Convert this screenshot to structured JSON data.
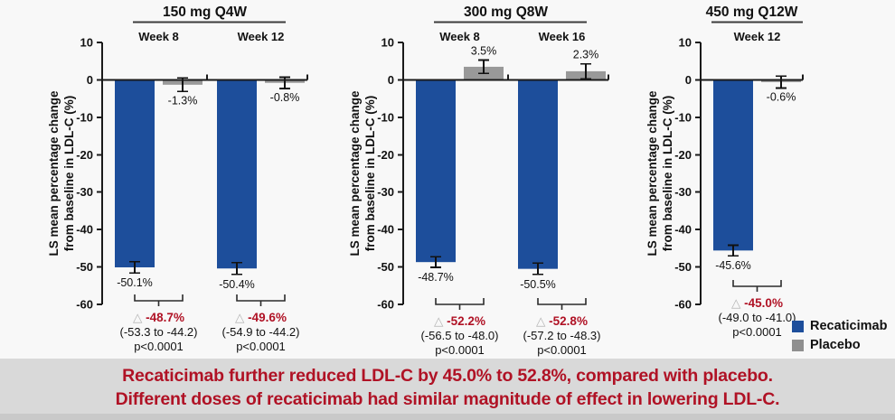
{
  "banner": {
    "line1": "Recaticimab further reduced LDL-C by 45.0% to 52.8%, compared with placebo.",
    "line2": "Different doses of recaticimab had similar magnitude of effect in lowering LDL-C."
  },
  "legend": {
    "items": [
      {
        "label": "Recaticimab",
        "color": "#1d4e9b"
      },
      {
        "label": "Placebo",
        "color": "#8f8f8f"
      }
    ]
  },
  "chart_data": {
    "type": "bar",
    "ylabel_line1": "LS mean percentage change",
    "ylabel_line2": "from baseline in LDL-C (%)",
    "ylim": [
      -60,
      10
    ],
    "yticks": [
      10,
      0,
      -10,
      -20,
      -30,
      -40,
      -50,
      -60
    ],
    "grid": false,
    "legend_position": "bottom-right",
    "delta_symbol": "△",
    "colors": {
      "recaticimab": "#1d4e9b",
      "placebo": "#999999",
      "delta_red": "#b01225",
      "axis": "#1a1a1a",
      "triangle": "#b5b5b5"
    },
    "panels": [
      {
        "title": "150 mg Q4W",
        "groups": [
          {
            "label": "Week 8",
            "recaticimab": {
              "value": -50.1,
              "error": 1.5,
              "label": "-50.1%"
            },
            "placebo": {
              "value": -1.3,
              "error": 1.8,
              "label": "-1.3%"
            },
            "difference": {
              "delta": "-48.7%",
              "ci": "(-53.3 to -44.2)",
              "p": "p<0.0001"
            }
          },
          {
            "label": "Week 12",
            "recaticimab": {
              "value": -50.4,
              "error": 1.6,
              "label": "-50.4%"
            },
            "placebo": {
              "value": -0.8,
              "error": 1.5,
              "label": "-0.8%"
            },
            "difference": {
              "delta": "-49.6%",
              "ci": "(-54.9 to -44.2)",
              "p": "p<0.0001"
            }
          }
        ]
      },
      {
        "title": "300 mg Q8W",
        "groups": [
          {
            "label": "Week 8",
            "recaticimab": {
              "value": -48.7,
              "error": 1.4,
              "label": "-48.7%"
            },
            "placebo": {
              "value": 3.5,
              "error": 1.8,
              "label": "3.5%"
            },
            "difference": {
              "delta": "-52.2%",
              "ci": "(-56.5 to -48.0)",
              "p": "p<0.0001"
            }
          },
          {
            "label": "Week 16",
            "recaticimab": {
              "value": -50.5,
              "error": 1.5,
              "label": "-50.5%"
            },
            "placebo": {
              "value": 2.3,
              "error": 2.0,
              "label": "2.3%"
            },
            "difference": {
              "delta": "-52.8%",
              "ci": "(-57.2 to -48.3)",
              "p": "p<0.0001"
            }
          }
        ]
      },
      {
        "title": "450 mg Q12W",
        "groups": [
          {
            "label": "Week 12",
            "recaticimab": {
              "value": -45.6,
              "error": 1.4,
              "label": "-45.6%"
            },
            "placebo": {
              "value": -0.6,
              "error": 1.6,
              "label": "-0.6%"
            },
            "difference": {
              "delta": "-45.0%",
              "ci": "(-49.0 to -41.0)",
              "p": "p<0.0001"
            }
          }
        ]
      }
    ]
  }
}
